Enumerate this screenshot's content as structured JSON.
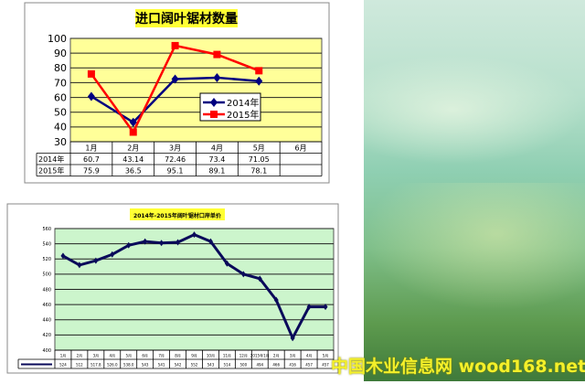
{
  "chart_data": [
    {
      "type": "line",
      "title": "进口阔叶锯材数量",
      "categories": [
        "1月",
        "2月",
        "3月",
        "4月",
        "5月",
        "6月"
      ],
      "ylim": [
        30,
        100
      ],
      "yticks": [
        30,
        40,
        50,
        60,
        70,
        80,
        90,
        100
      ],
      "grid": true,
      "legend": "center-right",
      "series": [
        {
          "name": "2014年",
          "color": "#000080",
          "marker": "diamond",
          "values": [
            60.7,
            43.14,
            72.46,
            73.4,
            71.05,
            null
          ],
          "labels": [
            "60.7",
            "43.14",
            "72.46",
            "73.4",
            "71.05",
            ""
          ]
        },
        {
          "name": "2015年",
          "color": "#ff0000",
          "marker": "square",
          "values": [
            75.9,
            36.5,
            95.1,
            89.1,
            78.1,
            null
          ],
          "labels": [
            "75.9",
            "36.5",
            "95.1",
            "89.1",
            "78.1",
            ""
          ]
        }
      ],
      "table_row_labels": [
        "2014年",
        "2015年"
      ],
      "background": "#ffff99"
    },
    {
      "type": "line",
      "title": "2014年-2015年阔叶锯材口岸单价",
      "categories": [
        "1月",
        "2月",
        "3月",
        "4月",
        "5月",
        "6月",
        "7月",
        "8月",
        "9月",
        "10月",
        "11月",
        "12月",
        "2015年1月",
        "2月",
        "3月",
        "4月",
        "5月"
      ],
      "ylim": [
        400,
        560
      ],
      "yticks": [
        400,
        420,
        440,
        460,
        480,
        500,
        520,
        540,
        560
      ],
      "grid": true,
      "series": [
        {
          "color": "#0a0a5a",
          "values": [
            524,
            512,
            517.8,
            526.0,
            538.0,
            543,
            541,
            542,
            552,
            543,
            514,
            500,
            494,
            466,
            416,
            457,
            457
          ],
          "labels": [
            "524",
            "512",
            "517.8",
            "526.0",
            "538.0",
            "543",
            "541",
            "542",
            "552",
            "543",
            "514",
            "500",
            "494",
            "466",
            "416",
            "457",
            "457"
          ]
        }
      ],
      "background": "#ccf5cc"
    }
  ],
  "watermark": "中国木业信息网 wood168.net"
}
